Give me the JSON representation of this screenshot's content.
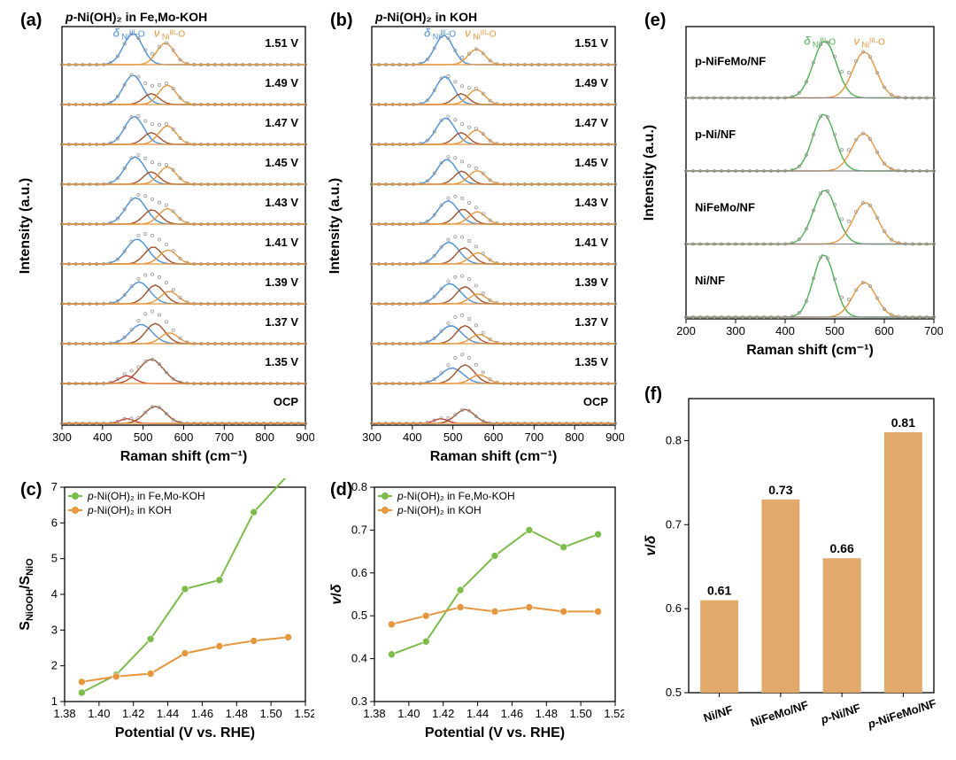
{
  "global": {
    "background_color": "#ffffff",
    "text_color": "#000000",
    "axis_color": "#000000",
    "grid_color": "#e0e0e0",
    "panel_label_fontsize": 20,
    "axis_label_fontsize": 16,
    "tick_fontsize": 13
  },
  "colors": {
    "green": "#7dbb4b",
    "orange": "#e6973d",
    "purple": "#a0522d",
    "blue": "#4a90d9",
    "red": "#cc3939",
    "gray": "#888888",
    "barfill": "#e2a96b"
  },
  "panel_a": {
    "label": "(a)",
    "type": "stacked-raman",
    "title": "p-Ni(OH)₂ in Fe,Mo-KOH",
    "title_fontsize": 14,
    "xlabel": "Raman shift (cm⁻¹)",
    "ylabel": "Intensity (a.u.)",
    "xlim": [
      300,
      900
    ],
    "xtick_step": 100,
    "delta_label": "δ",
    "nu_label": "ν",
    "subscript": "Ni",
    "superscript": "III",
    "suffix": "-O",
    "delta_color": "#4a90d9",
    "nu_color": "#e6973d",
    "traces": [
      {
        "label": "1.51 V",
        "peaks": [
          {
            "c": 475,
            "w": 55,
            "h": 1.0,
            "color": "#4a90d9"
          },
          {
            "c": 555,
            "w": 50,
            "h": 0.7,
            "color": "#e6973d"
          }
        ],
        "baseline": "#e6973d"
      },
      {
        "label": "1.49 V",
        "peaks": [
          {
            "c": 475,
            "w": 55,
            "h": 0.95,
            "color": "#4a90d9"
          },
          {
            "c": 520,
            "w": 45,
            "h": 0.35,
            "color": "#a0522d"
          },
          {
            "c": 560,
            "w": 50,
            "h": 0.63,
            "color": "#e6973d"
          }
        ],
        "baseline": "#e6973d"
      },
      {
        "label": "1.47 V",
        "peaks": [
          {
            "c": 478,
            "w": 55,
            "h": 0.9,
            "color": "#4a90d9"
          },
          {
            "c": 520,
            "w": 45,
            "h": 0.38,
            "color": "#a0522d"
          },
          {
            "c": 560,
            "w": 50,
            "h": 0.6,
            "color": "#e6973d"
          }
        ],
        "baseline": "#e6973d"
      },
      {
        "label": "1.45 V",
        "peaks": [
          {
            "c": 480,
            "w": 58,
            "h": 0.88,
            "color": "#4a90d9"
          },
          {
            "c": 520,
            "w": 45,
            "h": 0.4,
            "color": "#a0522d"
          },
          {
            "c": 560,
            "w": 50,
            "h": 0.56,
            "color": "#e6973d"
          }
        ],
        "baseline": "#e6973d"
      },
      {
        "label": "1.43 V",
        "peaks": [
          {
            "c": 482,
            "w": 60,
            "h": 0.85,
            "color": "#4a90d9"
          },
          {
            "c": 522,
            "w": 48,
            "h": 0.46,
            "color": "#a0522d"
          },
          {
            "c": 560,
            "w": 50,
            "h": 0.5,
            "color": "#e6973d"
          }
        ],
        "baseline": "#e6973d"
      },
      {
        "label": "1.41 V",
        "peaks": [
          {
            "c": 485,
            "w": 62,
            "h": 0.8,
            "color": "#4a90d9"
          },
          {
            "c": 525,
            "w": 50,
            "h": 0.55,
            "color": "#a0522d"
          },
          {
            "c": 562,
            "w": 50,
            "h": 0.45,
            "color": "#e6973d"
          }
        ],
        "baseline": "#e6973d"
      },
      {
        "label": "1.39 V",
        "peaks": [
          {
            "c": 490,
            "w": 62,
            "h": 0.7,
            "color": "#4a90d9"
          },
          {
            "c": 530,
            "w": 52,
            "h": 0.6,
            "color": "#a0522d"
          },
          {
            "c": 565,
            "w": 50,
            "h": 0.4,
            "color": "#e6973d"
          }
        ],
        "baseline": "#e6973d"
      },
      {
        "label": "1.37 V",
        "peaks": [
          {
            "c": 495,
            "w": 64,
            "h": 0.62,
            "color": "#4a90d9"
          },
          {
            "c": 530,
            "w": 55,
            "h": 0.65,
            "color": "#a0522d"
          },
          {
            "c": 565,
            "w": 50,
            "h": 0.35,
            "color": "#e6973d"
          }
        ],
        "baseline": "#e6973d"
      },
      {
        "label": "1.35 V",
        "peaks": [
          {
            "c": 460,
            "w": 45,
            "h": 0.25,
            "color": "#cc3939"
          },
          {
            "c": 520,
            "w": 70,
            "h": 0.78,
            "color": "#a0522d"
          }
        ],
        "baseline": "#e6973d"
      },
      {
        "label": "OCP",
        "peaks": [
          {
            "c": 460,
            "w": 40,
            "h": 0.15,
            "color": "#cc3939"
          },
          {
            "c": 530,
            "w": 60,
            "h": 0.55,
            "color": "#a0522d"
          }
        ],
        "baseline": "#e6973d"
      }
    ]
  },
  "panel_b": {
    "label": "(b)",
    "type": "stacked-raman",
    "title": "p-Ni(OH)₂ in KOH",
    "title_fontsize": 14,
    "xlabel": "Raman shift (cm⁻¹)",
    "ylabel": "Intensity (a.u.)",
    "xlim": [
      300,
      900
    ],
    "xtick_step": 100,
    "delta_label": "δ",
    "nu_label": "ν",
    "subscript": "Ni",
    "superscript": "III",
    "suffix": "-O",
    "delta_color": "#4a90d9",
    "nu_color": "#e6973d",
    "traces": [
      {
        "label": "1.51 V",
        "peaks": [
          {
            "c": 478,
            "w": 52,
            "h": 0.95,
            "color": "#4a90d9"
          },
          {
            "c": 558,
            "w": 48,
            "h": 0.5,
            "color": "#e6973d"
          }
        ],
        "baseline": "#e6973d"
      },
      {
        "label": "1.49 V",
        "peaks": [
          {
            "c": 480,
            "w": 52,
            "h": 0.9,
            "color": "#4a90d9"
          },
          {
            "c": 520,
            "w": 42,
            "h": 0.35,
            "color": "#a0522d"
          },
          {
            "c": 558,
            "w": 48,
            "h": 0.48,
            "color": "#e6973d"
          }
        ],
        "baseline": "#e6973d"
      },
      {
        "label": "1.47 V",
        "peaks": [
          {
            "c": 482,
            "w": 54,
            "h": 0.85,
            "color": "#4a90d9"
          },
          {
            "c": 520,
            "w": 42,
            "h": 0.38,
            "color": "#a0522d"
          },
          {
            "c": 558,
            "w": 48,
            "h": 0.46,
            "color": "#e6973d"
          }
        ],
        "baseline": "#e6973d"
      },
      {
        "label": "1.45 V",
        "peaks": [
          {
            "c": 485,
            "w": 56,
            "h": 0.8,
            "color": "#4a90d9"
          },
          {
            "c": 522,
            "w": 44,
            "h": 0.42,
            "color": "#a0522d"
          },
          {
            "c": 560,
            "w": 48,
            "h": 0.44,
            "color": "#e6973d"
          }
        ],
        "baseline": "#e6973d"
      },
      {
        "label": "1.43 V",
        "peaks": [
          {
            "c": 488,
            "w": 58,
            "h": 0.75,
            "color": "#4a90d9"
          },
          {
            "c": 525,
            "w": 46,
            "h": 0.48,
            "color": "#a0522d"
          },
          {
            "c": 560,
            "w": 48,
            "h": 0.4,
            "color": "#e6973d"
          }
        ],
        "baseline": "#e6973d"
      },
      {
        "label": "1.41 V",
        "peaks": [
          {
            "c": 490,
            "w": 60,
            "h": 0.7,
            "color": "#4a90d9"
          },
          {
            "c": 528,
            "w": 48,
            "h": 0.52,
            "color": "#a0522d"
          },
          {
            "c": 562,
            "w": 48,
            "h": 0.36,
            "color": "#e6973d"
          }
        ],
        "baseline": "#e6973d"
      },
      {
        "label": "1.39 V",
        "peaks": [
          {
            "c": 492,
            "w": 62,
            "h": 0.65,
            "color": "#4a90d9"
          },
          {
            "c": 530,
            "w": 50,
            "h": 0.55,
            "color": "#a0522d"
          },
          {
            "c": 562,
            "w": 48,
            "h": 0.32,
            "color": "#e6973d"
          }
        ],
        "baseline": "#e6973d"
      },
      {
        "label": "1.37 V",
        "peaks": [
          {
            "c": 495,
            "w": 62,
            "h": 0.58,
            "color": "#4a90d9"
          },
          {
            "c": 530,
            "w": 52,
            "h": 0.58,
            "color": "#a0522d"
          },
          {
            "c": 565,
            "w": 48,
            "h": 0.3,
            "color": "#e6973d"
          }
        ],
        "baseline": "#e6973d"
      },
      {
        "label": "1.35 V",
        "peaks": [
          {
            "c": 498,
            "w": 64,
            "h": 0.5,
            "color": "#4a90d9"
          },
          {
            "c": 530,
            "w": 54,
            "h": 0.6,
            "color": "#a0522d"
          },
          {
            "c": 565,
            "w": 48,
            "h": 0.28,
            "color": "#e6973d"
          }
        ],
        "baseline": "#e6973d"
      },
      {
        "label": "OCP",
        "peaks": [
          {
            "c": 470,
            "w": 40,
            "h": 0.15,
            "color": "#cc3939"
          },
          {
            "c": 530,
            "w": 55,
            "h": 0.45,
            "color": "#a0522d"
          }
        ],
        "baseline": "#e6973d"
      }
    ]
  },
  "panel_c": {
    "label": "(c)",
    "type": "line",
    "xlabel": "Potential (V vs. RHE)",
    "ylabel": "SNiOOH/SNiO",
    "xlim": [
      1.38,
      1.52
    ],
    "xtick_step": 0.02,
    "ylim": [
      1,
      7
    ],
    "ytick_step": 1,
    "legend": [
      {
        "label": "p-Ni(OH)₂ in Fe,Mo-KOH",
        "color": "#7dbb4b"
      },
      {
        "label": "p-Ni(OH)₂ in KOH",
        "color": "#e6973d"
      }
    ],
    "series": [
      {
        "color": "#7dbb4b",
        "marker": "circle",
        "r": 4,
        "x": [
          1.39,
          1.41,
          1.43,
          1.45,
          1.47,
          1.49,
          1.51
        ],
        "y": [
          1.25,
          1.75,
          2.75,
          4.15,
          4.4,
          6.3,
          7.35
        ]
      },
      {
        "color": "#e6973d",
        "marker": "circle",
        "r": 4,
        "x": [
          1.39,
          1.41,
          1.43,
          1.45,
          1.47,
          1.49,
          1.51
        ],
        "y": [
          1.55,
          1.7,
          1.78,
          2.35,
          2.55,
          2.7,
          2.8
        ]
      }
    ]
  },
  "panel_d": {
    "label": "(d)",
    "type": "line",
    "xlabel": "Potential (V vs. RHE)",
    "ylabel": "v/δ",
    "xlim": [
      1.38,
      1.52
    ],
    "xtick_step": 0.02,
    "ylim": [
      0.3,
      0.8
    ],
    "ytick_step": 0.1,
    "legend": [
      {
        "label": "p-Ni(OH)₂ in Fe,Mo-KOH",
        "color": "#7dbb4b"
      },
      {
        "label": "p-Ni(OH)₂ in KOH",
        "color": "#e6973d"
      }
    ],
    "series": [
      {
        "color": "#7dbb4b",
        "marker": "circle",
        "r": 4,
        "x": [
          1.39,
          1.41,
          1.43,
          1.45,
          1.47,
          1.49,
          1.51
        ],
        "y": [
          0.41,
          0.44,
          0.56,
          0.64,
          0.7,
          0.66,
          0.69
        ]
      },
      {
        "color": "#e6973d",
        "marker": "circle",
        "r": 4,
        "x": [
          1.39,
          1.41,
          1.43,
          1.45,
          1.47,
          1.49,
          1.51
        ],
        "y": [
          0.48,
          0.5,
          0.52,
          0.51,
          0.52,
          0.51,
          0.51
        ]
      }
    ]
  },
  "panel_e": {
    "label": "(e)",
    "type": "stacked-raman",
    "xlabel": "Raman shift (cm⁻¹)",
    "ylabel": "Intensity (a.u.)",
    "xlim": [
      200,
      700
    ],
    "xtick_step": 100,
    "delta_label": "δ",
    "nu_label": "ν",
    "subscript": "Ni",
    "superscript": "III",
    "suffix": "-O",
    "delta_color": "#4caf50",
    "nu_color": "#e6973d",
    "traces": [
      {
        "label": "p-NiFeMo/NF",
        "peaks": [
          {
            "c": 480,
            "w": 55,
            "h": 1.0,
            "color": "#4caf50"
          },
          {
            "c": 560,
            "w": 55,
            "h": 0.81,
            "color": "#e6973d"
          }
        ],
        "baseline": "#888888"
      },
      {
        "label": "p-Ni/NF",
        "peaks": [
          {
            "c": 478,
            "w": 52,
            "h": 1.0,
            "color": "#4caf50"
          },
          {
            "c": 558,
            "w": 55,
            "h": 0.66,
            "color": "#e6973d"
          }
        ],
        "baseline": "#888888"
      },
      {
        "label": "NiFeMo/NF",
        "peaks": [
          {
            "c": 480,
            "w": 55,
            "h": 0.95,
            "color": "#4caf50"
          },
          {
            "c": 562,
            "w": 58,
            "h": 0.73,
            "color": "#e6973d"
          }
        ],
        "baseline": "#888888"
      },
      {
        "label": "Ni/NF",
        "peaks": [
          {
            "c": 478,
            "w": 50,
            "h": 1.1,
            "color": "#4caf50"
          },
          {
            "c": 560,
            "w": 55,
            "h": 0.61,
            "color": "#e6973d"
          }
        ],
        "baseline": "#888888"
      }
    ]
  },
  "panel_f": {
    "label": "(f)",
    "type": "bar",
    "xlabel": "",
    "ylabel": "v/δ",
    "categories": [
      "Ni/NF",
      "NiFeMo/NF",
      "p-Ni/NF",
      "p-NiFeMo/NF"
    ],
    "values": [
      0.61,
      0.73,
      0.66,
      0.81
    ],
    "value_labels": [
      "0.61",
      "0.73",
      "0.66",
      "0.81"
    ],
    "ylim": [
      0.5,
      0.85
    ],
    "ytick_step": 0.1,
    "bar_color": "#e2a96b",
    "bar_width": 0.62,
    "label_fontsize": 14,
    "rotate_xlabels": -18
  }
}
